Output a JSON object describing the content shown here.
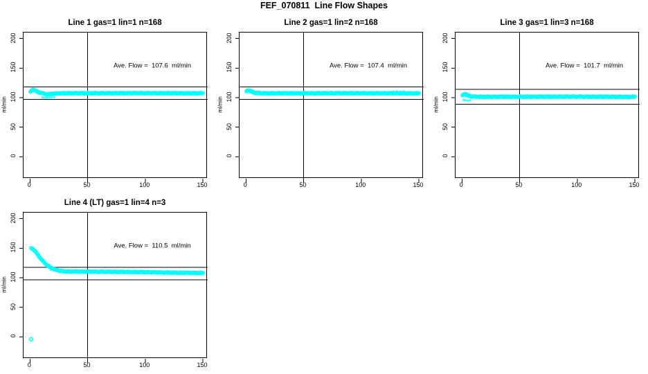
{
  "figure": {
    "title": "FEF_070811  Line Flow Shapes"
  },
  "colors": {
    "marker": "#00FFFF",
    "axis": "#000000",
    "text": "#000000",
    "background": "#FFFFFF"
  },
  "axes": {
    "x_range": [
      -5.6,
      154.2
    ],
    "y_range": [
      -37,
      210
    ],
    "x_ticks": [
      0,
      50,
      100,
      150
    ],
    "y_ticks": [
      0,
      50,
      100,
      150,
      200
    ],
    "crosshair_x": 50,
    "grid": false,
    "legend": "none"
  },
  "chart_data": [
    {
      "type": "scatter",
      "title": "Line 1 gas=1 lin=1 n=168",
      "ylabel": "ml/min",
      "annotation": "Ave. Flow =  107.6  ml/min",
      "ave_flow_ml_min": 107.6,
      "n": 168,
      "limit_lines": [
        118,
        97
      ],
      "points": [
        [
          0.5,
          109
        ],
        [
          1,
          111.5
        ],
        [
          2,
          113.5
        ],
        [
          3,
          113.8
        ],
        [
          4,
          112.5
        ],
        [
          5,
          111.3
        ],
        [
          6,
          110.3
        ],
        [
          7,
          109.5
        ],
        [
          8,
          108.8
        ],
        [
          9,
          108.3
        ],
        [
          10,
          107.9
        ],
        [
          12,
          107
        ],
        [
          14,
          105.8
        ],
        [
          16,
          105.2
        ],
        [
          18,
          106
        ],
        [
          20,
          106.8
        ],
        [
          25,
          107.3
        ],
        [
          30,
          107.4
        ],
        [
          40,
          107.5
        ],
        [
          60,
          107.5
        ],
        [
          80,
          107.6
        ],
        [
          100,
          107.6
        ],
        [
          120,
          107.5
        ],
        [
          150,
          107.3
        ]
      ],
      "extra_points": [
        [
          11,
          100.5
        ],
        [
          13,
          100
        ],
        [
          15,
          99.8
        ],
        [
          17,
          100.2
        ],
        [
          19,
          100.8
        ],
        [
          21,
          101
        ]
      ],
      "outliers": []
    },
    {
      "type": "scatter",
      "title": "Line 2 gas=1 lin=2 n=168",
      "ylabel": "ml/min",
      "annotation": "Ave. Flow =  107.4  ml/min",
      "ave_flow_ml_min": 107.4,
      "n": 168,
      "limit_lines": [
        118,
        97
      ],
      "points": [
        [
          0.5,
          110
        ],
        [
          1,
          112
        ],
        [
          2,
          113
        ],
        [
          3,
          112.3
        ],
        [
          4,
          111
        ],
        [
          5,
          110
        ],
        [
          6,
          109.2
        ],
        [
          8,
          108.3
        ],
        [
          10,
          107.8
        ],
        [
          15,
          107.4
        ],
        [
          20,
          107.3
        ],
        [
          40,
          107.4
        ],
        [
          60,
          107.4
        ],
        [
          80,
          107.5
        ],
        [
          100,
          107.5
        ],
        [
          120,
          107.4
        ],
        [
          150,
          107.2
        ]
      ],
      "extra_points": [
        [
          128,
          110.3
        ],
        [
          131,
          110.6
        ],
        [
          134,
          110.2
        ],
        [
          137,
          110.4
        ]
      ],
      "outliers": []
    },
    {
      "type": "scatter",
      "title": "Line 3 gas=1 lin=3 n=168",
      "ylabel": "ml/min",
      "annotation": "Ave. Flow =  101.7  ml/min",
      "ave_flow_ml_min": 101.7,
      "n": 168,
      "limit_lines": [
        114,
        89
      ],
      "points": [
        [
          0.5,
          103
        ],
        [
          1,
          105
        ],
        [
          2,
          106.3
        ],
        [
          3,
          106
        ],
        [
          4,
          104.8
        ],
        [
          5,
          103.8
        ],
        [
          6,
          103
        ],
        [
          8,
          102.2
        ],
        [
          10,
          101.8
        ],
        [
          15,
          101.5
        ],
        [
          20,
          101.4
        ],
        [
          40,
          101.5
        ],
        [
          60,
          101.5
        ],
        [
          80,
          101.6
        ],
        [
          100,
          101.6
        ],
        [
          120,
          101.5
        ],
        [
          150,
          101.3
        ]
      ],
      "extra_points": [
        [
          1.5,
          96
        ],
        [
          3,
          95.5
        ],
        [
          5,
          95
        ],
        [
          7,
          95.5
        ]
      ],
      "outliers": []
    },
    {
      "type": "scatter",
      "title": "Line 4 (LT) gas=1 lin=4 n=3",
      "ylabel": "ml/min",
      "annotation": "Ave. Flow =  110.5  ml/min",
      "ave_flow_ml_min": 110.5,
      "n": 3,
      "limit_lines": [
        117.5,
        96.5
      ],
      "points": [
        [
          1,
          150
        ],
        [
          2,
          149.3
        ],
        [
          3,
          147.8
        ],
        [
          4,
          145.8
        ],
        [
          5,
          143.5
        ],
        [
          6,
          141
        ],
        [
          7,
          138.4
        ],
        [
          8,
          135.8
        ],
        [
          9,
          133.2
        ],
        [
          10,
          130.8
        ],
        [
          11,
          128.5
        ],
        [
          12,
          126.4
        ],
        [
          13,
          124.4
        ],
        [
          14,
          122.6
        ],
        [
          15,
          121
        ],
        [
          16,
          119.5
        ],
        [
          17,
          118.2
        ],
        [
          18,
          117
        ],
        [
          19,
          116
        ],
        [
          20,
          115.1
        ],
        [
          21,
          114.3
        ],
        [
          22,
          113.6
        ],
        [
          23,
          113
        ],
        [
          24,
          112.5
        ],
        [
          26,
          111.7
        ],
        [
          28,
          111.2
        ],
        [
          30,
          110.8
        ],
        [
          35,
          110.4
        ],
        [
          40,
          110.3
        ],
        [
          50,
          110.2
        ],
        [
          60,
          110.1
        ],
        [
          70,
          110
        ],
        [
          80,
          109.8
        ],
        [
          90,
          109.6
        ],
        [
          100,
          109.3
        ],
        [
          110,
          109
        ],
        [
          120,
          108.7
        ],
        [
          130,
          108.4
        ],
        [
          140,
          108.1
        ],
        [
          150,
          107.8
        ]
      ],
      "extra_points": [],
      "outliers": [
        [
          1,
          -4
        ]
      ]
    }
  ]
}
